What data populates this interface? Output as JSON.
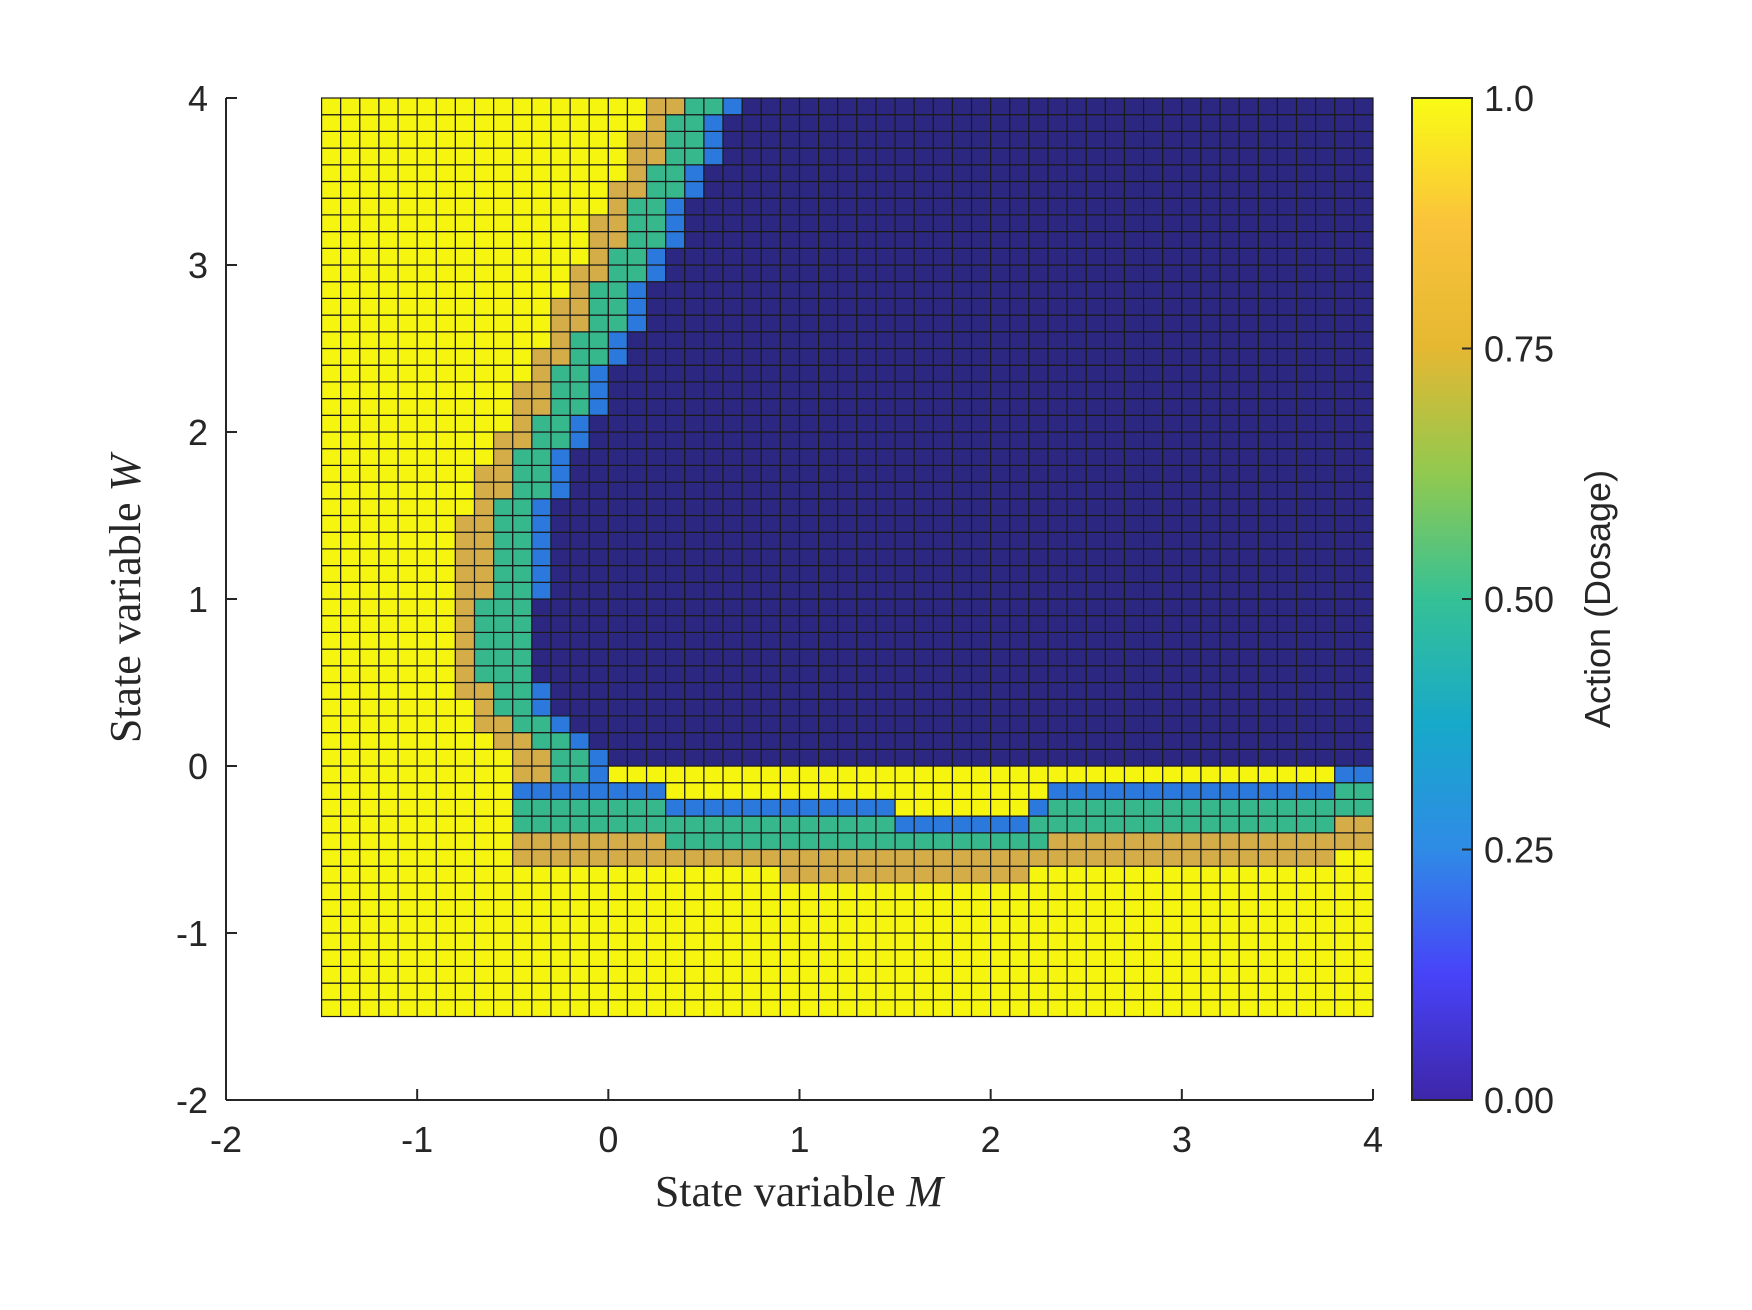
{
  "chart_data": {
    "type": "heatmap",
    "xlabel": "State variable ",
    "xlabel_var": "M",
    "ylabel": "State variable ",
    "ylabel_var": "W",
    "xlim": [
      -2,
      4
    ],
    "ylim": [
      -2,
      4
    ],
    "x_ticks": [
      "-2",
      "-1",
      "0",
      "1",
      "2",
      "3",
      "4"
    ],
    "y_ticks": [
      "-2",
      "-1",
      "0",
      "1",
      "2",
      "3",
      "4"
    ],
    "grid_x_range": [
      -1.5,
      4
    ],
    "grid_y_range": [
      -1.5,
      4
    ],
    "grid_cols": 55,
    "grid_rows": 55,
    "colorbar": {
      "label": "Action (Dosage)",
      "range": [
        0,
        1
      ],
      "tick_labels": [
        "0.00",
        "0.25",
        "0.50",
        "0.75",
        "1.0"
      ],
      "tick_values": [
        0,
        0.25,
        0.5,
        0.75,
        1.0
      ],
      "colormap": [
        "#3e26a8",
        "#4743f8",
        "#2f8be6",
        "#17a9c9",
        "#35c196",
        "#91c94f",
        "#e5b832",
        "#fac33b",
        "#f9fb15"
      ]
    },
    "levels": {
      "full": 1.0,
      "high": 0.75,
      "mid": 0.5,
      "low": 0.25,
      "none": 0.0
    },
    "level_colors": {
      "full": "#f5f510",
      "high": "#d4ad48",
      "mid": "#36b78c",
      "low": "#2b79dc",
      "none": "#2c2882"
    },
    "boundary_profile": {
      "description_columns": "for each column x-center: lower W edge of dosage-0 region",
      "lower_edge": [
        {
          "m": 0.0,
          "w": -0.1
        },
        {
          "m": 0.3,
          "w": -0.15
        },
        {
          "m": 0.9,
          "w": -0.2
        },
        {
          "m": 1.5,
          "w": -0.25
        },
        {
          "m": 2.2,
          "w": -0.25
        },
        {
          "m": 2.3,
          "w": -0.1
        },
        {
          "m": 3.2,
          "w": -0.1
        },
        {
          "m": 3.8,
          "w": -0.1
        },
        {
          "m": 3.9,
          "w": 0.0
        }
      ],
      "left_edge": [
        {
          "w": 4.0,
          "m": 0.7
        },
        {
          "w": 3.5,
          "m": 0.5
        },
        {
          "w": 3.0,
          "m": 0.3
        },
        {
          "w": 2.5,
          "m": 0.1
        },
        {
          "w": 2.0,
          "m": -0.1
        },
        {
          "w": 1.5,
          "m": -0.3
        },
        {
          "w": 1.0,
          "m": -0.35
        },
        {
          "w": 0.5,
          "m": -0.35
        },
        {
          "w": 0.2,
          "m": -0.2
        },
        {
          "w": 0.05,
          "m": 0.0
        }
      ]
    }
  }
}
